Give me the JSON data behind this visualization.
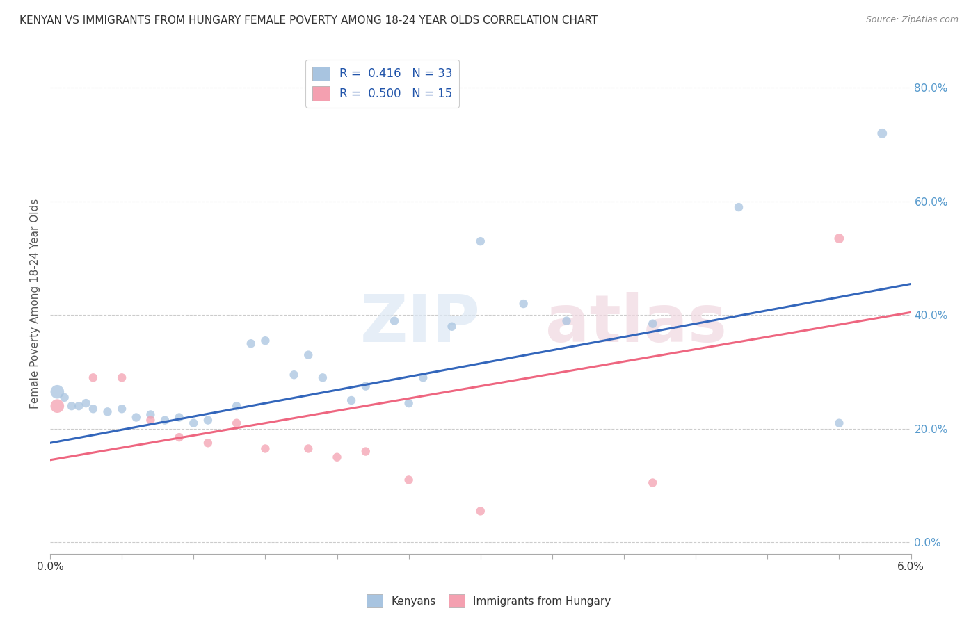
{
  "title": "KENYAN VS IMMIGRANTS FROM HUNGARY FEMALE POVERTY AMONG 18-24 YEAR OLDS CORRELATION CHART",
  "source": "Source: ZipAtlas.com",
  "ylabel": "Female Poverty Among 18-24 Year Olds",
  "ylabel_right_ticks": [
    "0.0%",
    "20.0%",
    "40.0%",
    "60.0%",
    "80.0%"
  ],
  "ylabel_right_vals": [
    0.0,
    0.2,
    0.4,
    0.6,
    0.8
  ],
  "xlim": [
    0.0,
    0.06
  ],
  "ylim": [
    -0.02,
    0.86
  ],
  "legend_r1": "R =  0.416   N = 33",
  "legend_r2": "R =  0.500   N = 15",
  "kenyan_color": "#a8c4e0",
  "hungary_color": "#f4a0b0",
  "line_blue": "#3366bb",
  "line_pink": "#ee6680",
  "watermark": "ZIPatlas",
  "kenyan_points_x": [
    0.0005,
    0.001,
    0.0015,
    0.002,
    0.0025,
    0.003,
    0.004,
    0.005,
    0.006,
    0.007,
    0.008,
    0.009,
    0.01,
    0.011,
    0.013,
    0.014,
    0.015,
    0.017,
    0.018,
    0.019,
    0.021,
    0.022,
    0.024,
    0.025,
    0.026,
    0.028,
    0.03,
    0.033,
    0.036,
    0.042,
    0.048,
    0.055,
    0.058
  ],
  "kenyan_points_y": [
    0.265,
    0.255,
    0.24,
    0.24,
    0.245,
    0.235,
    0.23,
    0.235,
    0.22,
    0.225,
    0.215,
    0.22,
    0.21,
    0.215,
    0.24,
    0.35,
    0.355,
    0.295,
    0.33,
    0.29,
    0.25,
    0.275,
    0.39,
    0.245,
    0.29,
    0.38,
    0.53,
    0.42,
    0.39,
    0.385,
    0.59,
    0.21,
    0.72
  ],
  "hungary_points_x": [
    0.0005,
    0.003,
    0.005,
    0.007,
    0.009,
    0.011,
    0.013,
    0.015,
    0.018,
    0.02,
    0.022,
    0.025,
    0.03,
    0.042,
    0.055
  ],
  "hungary_points_y": [
    0.24,
    0.29,
    0.29,
    0.215,
    0.185,
    0.175,
    0.21,
    0.165,
    0.165,
    0.15,
    0.16,
    0.11,
    0.055,
    0.105,
    0.535
  ],
  "kenyan_line_x0": 0.0,
  "kenyan_line_y0": 0.175,
  "kenyan_line_x1": 0.06,
  "kenyan_line_y1": 0.455,
  "hungary_line_x0": 0.0,
  "hungary_line_y0": 0.145,
  "hungary_line_x1": 0.06,
  "hungary_line_y1": 0.405,
  "kenyan_sizes": [
    200,
    80,
    80,
    80,
    80,
    80,
    80,
    80,
    80,
    80,
    80,
    80,
    80,
    80,
    80,
    80,
    80,
    80,
    80,
    80,
    80,
    80,
    80,
    80,
    80,
    80,
    80,
    80,
    80,
    80,
    80,
    80,
    100
  ],
  "hungary_sizes": [
    200,
    80,
    80,
    80,
    80,
    80,
    80,
    80,
    80,
    80,
    80,
    80,
    80,
    80,
    100
  ]
}
